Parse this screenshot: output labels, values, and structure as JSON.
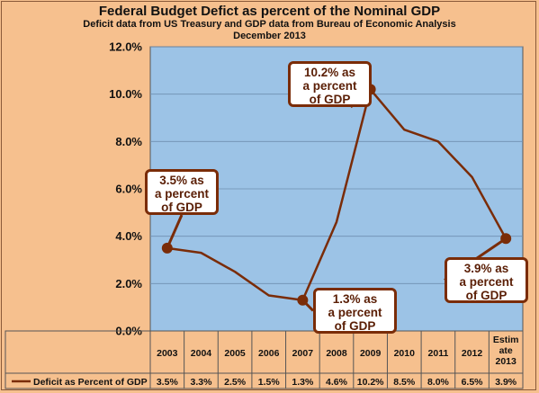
{
  "chart_data": {
    "type": "line",
    "title": "Federal Budget Defict as percent of the Nominal GDP",
    "subtitle": "Deficit data from US Treasury and GDP data from Bureau  of Economic Analysis",
    "subtitle2": "December 2013",
    "categories": [
      "2003",
      "2004",
      "2005",
      "2006",
      "2007",
      "2008",
      "2009",
      "2010",
      "2011",
      "2012",
      "Estim ate 2013"
    ],
    "series": [
      {
        "name": "Deficit as Percent of GDP",
        "values": [
          3.5,
          3.3,
          2.5,
          1.5,
          1.3,
          4.6,
          10.2,
          8.5,
          8.0,
          6.5,
          3.9
        ],
        "labels": [
          "3.5%",
          "3.3%",
          "2.5%",
          "1.5%",
          "1.3%",
          "4.6%",
          "10.2%",
          "8.5%",
          "8.0%",
          "6.5%",
          "3.9%"
        ]
      }
    ],
    "ylim": [
      0,
      12
    ],
    "yticks": [
      "0.0%",
      "2.0%",
      "4.0%",
      "6.0%",
      "8.0%",
      "10.0%",
      "12.0%"
    ],
    "grid": true,
    "data_table": true,
    "annotations": [
      {
        "text": "3.5% as\na percent\nof GDP",
        "point": 0
      },
      {
        "text": "1.3% as\na percent\nof GDP",
        "point": 4
      },
      {
        "text": "10.2% as\na percent\nof GDP",
        "point": 6
      },
      {
        "text": "3.9% as\na percent\nof GDP",
        "point": 10
      }
    ],
    "colors": {
      "background": "#f6c08e",
      "plot_area": "#9cc3e6",
      "line": "#7a2c08",
      "marker": "#7a2c08",
      "annotation_border": "#7a2c08"
    }
  }
}
